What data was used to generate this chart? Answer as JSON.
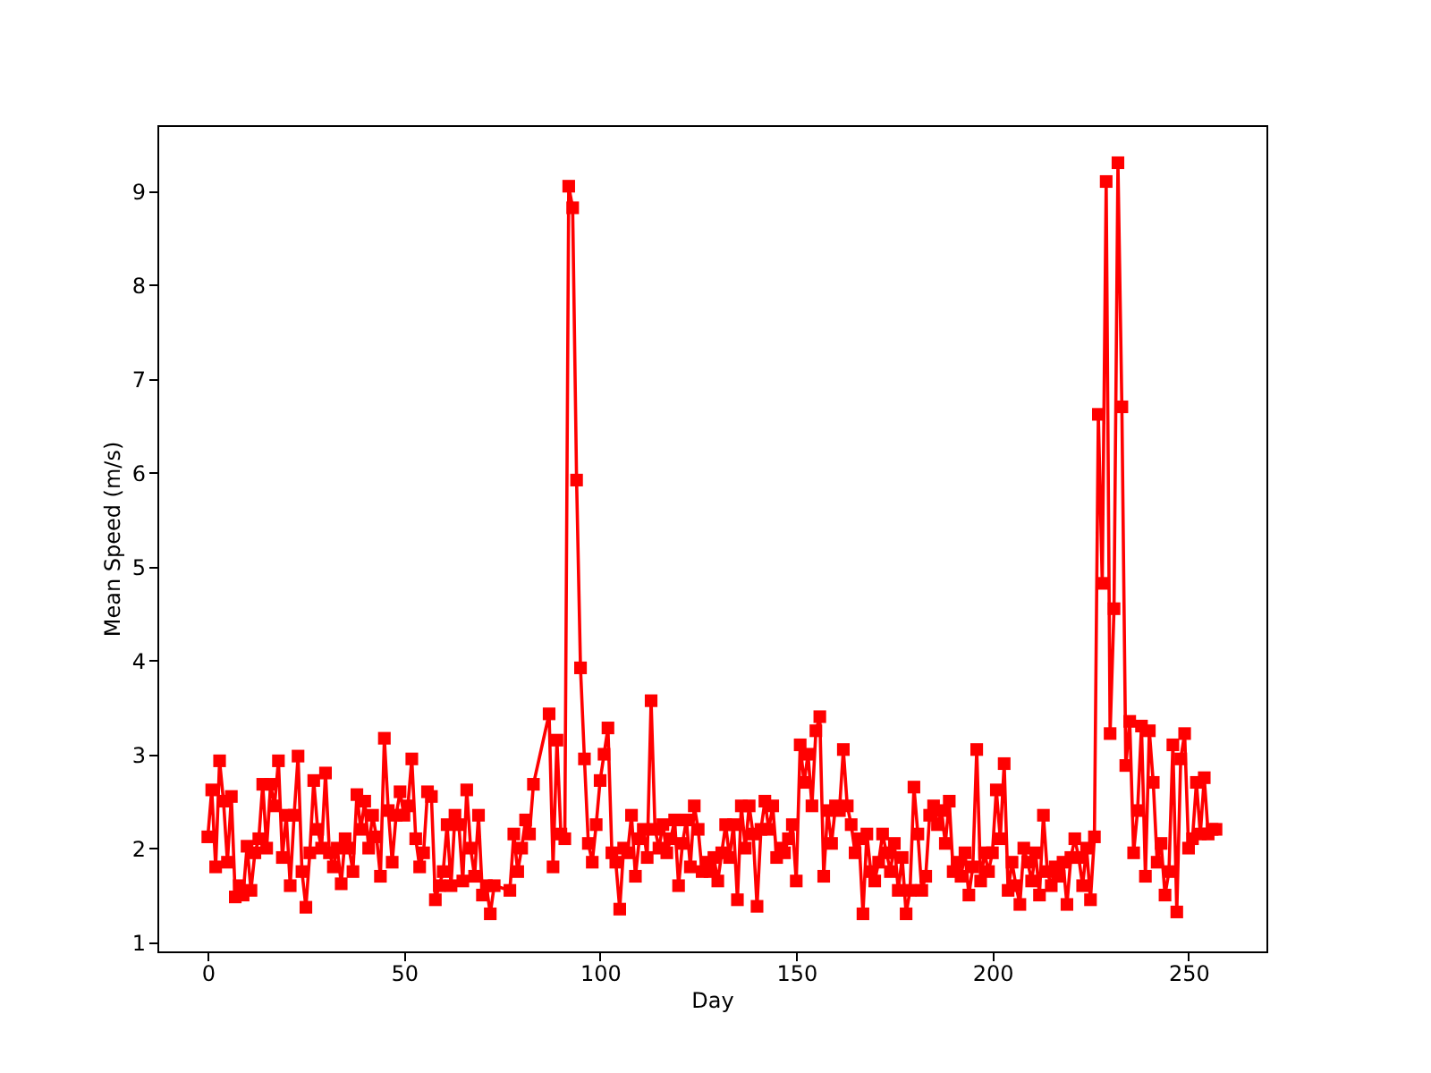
{
  "chart_data": {
    "type": "line",
    "xlabel": "Day",
    "ylabel": "Mean Speed (m/s)",
    "xlim": [
      -12.85,
      269.85
    ],
    "xticks": [
      0,
      50,
      100,
      150,
      200,
      250
    ],
    "ylim": [
      0.9,
      9.7
    ],
    "yticks": [
      1,
      2,
      3,
      4,
      5,
      6,
      7,
      8,
      9
    ],
    "grid": false,
    "marker": "square",
    "line_style": "solid",
    "x": [
      0,
      1,
      2,
      3,
      4,
      5,
      6,
      7,
      8,
      9,
      10,
      11,
      12,
      13,
      14,
      15,
      16,
      17,
      18,
      19,
      20,
      21,
      22,
      23,
      24,
      25,
      26,
      27,
      28,
      29,
      30,
      31,
      32,
      33,
      34,
      35,
      36,
      37,
      38,
      39,
      40,
      41,
      42,
      43,
      44,
      45,
      46,
      47,
      48,
      49,
      50,
      51,
      52,
      53,
      54,
      55,
      56,
      57,
      58,
      59,
      60,
      61,
      62,
      63,
      64,
      65,
      66,
      67,
      68,
      69,
      70,
      71,
      72,
      73,
      77,
      78,
      79,
      80,
      81,
      82,
      83,
      87,
      88,
      89,
      90,
      91,
      92,
      93,
      94,
      95,
      96,
      97,
      98,
      99,
      100,
      101,
      102,
      103,
      104,
      105,
      106,
      107,
      108,
      109,
      110,
      111,
      112,
      113,
      114,
      115,
      116,
      117,
      118,
      119,
      120,
      121,
      122,
      123,
      124,
      125,
      126,
      127,
      128,
      129,
      130,
      131,
      132,
      133,
      134,
      135,
      136,
      137,
      138,
      139,
      140,
      141,
      142,
      143,
      144,
      145,
      146,
      147,
      148,
      149,
      150,
      151,
      152,
      153,
      154,
      155,
      156,
      157,
      158,
      159,
      160,
      161,
      162,
      163,
      164,
      165,
      166,
      167,
      168,
      169,
      170,
      171,
      172,
      173,
      174,
      175,
      176,
      177,
      178,
      179,
      180,
      181,
      182,
      183,
      184,
      185,
      186,
      187,
      188,
      189,
      190,
      191,
      192,
      193,
      194,
      195,
      196,
      197,
      198,
      199,
      200,
      201,
      202,
      203,
      204,
      205,
      206,
      207,
      208,
      209,
      210,
      211,
      212,
      213,
      214,
      215,
      216,
      217,
      218,
      219,
      220,
      221,
      222,
      223,
      224,
      225,
      226,
      227,
      228,
      229,
      230,
      231,
      232,
      233,
      234,
      235,
      236,
      237,
      238,
      239,
      240,
      241,
      242,
      243,
      244,
      245,
      246,
      247,
      248,
      249,
      250,
      251,
      252,
      253,
      254,
      255,
      256,
      257
    ],
    "series": [
      {
        "color": "#ff0000",
        "values": [
          2.12,
          2.62,
          1.8,
          2.93,
          2.5,
          1.85,
          2.55,
          1.48,
          1.6,
          1.5,
          2.02,
          1.55,
          1.95,
          2.1,
          2.68,
          2.0,
          2.68,
          2.45,
          2.93,
          1.9,
          2.35,
          1.6,
          2.35,
          2.98,
          1.75,
          1.37,
          1.95,
          2.72,
          2.2,
          2.0,
          2.8,
          1.95,
          1.8,
          2.0,
          1.62,
          2.1,
          2.0,
          1.75,
          2.57,
          2.2,
          2.5,
          2.0,
          2.35,
          2.12,
          1.7,
          3.17,
          2.4,
          1.85,
          2.35,
          2.6,
          2.35,
          2.45,
          2.95,
          2.1,
          1.8,
          1.95,
          2.6,
          2.55,
          1.45,
          1.6,
          1.75,
          2.25,
          1.6,
          2.35,
          2.25,
          1.65,
          2.62,
          2.0,
          1.7,
          2.35,
          1.5,
          1.6,
          1.3,
          1.6,
          1.55,
          2.15,
          1.75,
          2.0,
          2.3,
          2.15,
          2.68,
          3.43,
          1.8,
          3.15,
          2.15,
          2.1,
          9.05,
          8.82,
          5.92,
          3.92,
          2.95,
          2.05,
          1.85,
          2.25,
          2.72,
          3.0,
          3.28,
          1.95,
          1.85,
          1.35,
          2.0,
          1.95,
          2.35,
          1.7,
          2.1,
          2.2,
          1.9,
          3.57,
          2.2,
          2.0,
          2.25,
          1.95,
          2.1,
          2.3,
          1.6,
          2.05,
          2.3,
          1.8,
          2.45,
          2.2,
          1.75,
          1.85,
          1.75,
          1.9,
          1.65,
          1.95,
          2.25,
          1.9,
          2.25,
          1.45,
          2.45,
          2.0,
          2.45,
          2.15,
          1.38,
          2.2,
          2.5,
          2.2,
          2.45,
          1.9,
          2.0,
          1.95,
          2.1,
          2.25,
          1.65,
          3.1,
          2.7,
          3.0,
          2.45,
          3.25,
          3.4,
          1.7,
          2.4,
          2.05,
          2.45,
          2.4,
          3.05,
          2.45,
          2.25,
          1.95,
          2.1,
          1.3,
          2.15,
          1.75,
          1.65,
          1.85,
          2.15,
          1.95,
          1.75,
          2.05,
          1.55,
          1.9,
          1.3,
          1.55,
          2.65,
          2.15,
          1.55,
          1.7,
          2.35,
          2.45,
          2.25,
          2.4,
          2.05,
          2.5,
          1.75,
          1.85,
          1.7,
          1.95,
          1.5,
          1.8,
          3.05,
          1.65,
          1.95,
          1.75,
          1.95,
          2.62,
          2.1,
          2.9,
          1.55,
          1.85,
          1.6,
          1.4,
          2.0,
          1.85,
          1.65,
          1.95,
          1.5,
          2.35,
          1.75,
          1.6,
          1.8,
          1.7,
          1.85,
          1.4,
          1.9,
          2.1,
          1.9,
          1.6,
          2.0,
          1.45,
          2.12,
          6.62,
          4.82,
          9.1,
          3.22,
          4.55,
          9.3,
          6.7,
          2.88,
          3.35,
          1.95,
          2.4,
          3.3,
          1.7,
          3.25,
          2.7,
          1.85,
          2.05,
          1.5,
          1.75,
          3.1,
          1.32,
          2.95,
          3.22,
          2.0,
          2.1,
          2.7,
          2.15,
          2.75,
          2.15,
          2.2,
          2.2
        ]
      }
    ]
  }
}
